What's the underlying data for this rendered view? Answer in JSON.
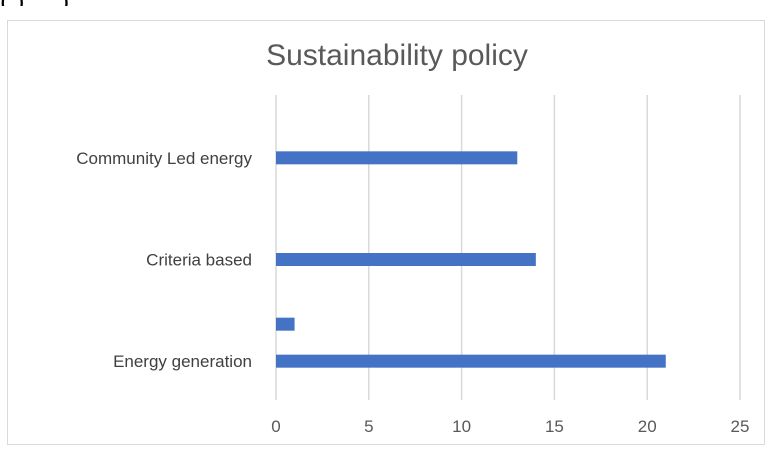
{
  "chart_data": {
    "type": "bar",
    "orientation": "horizontal",
    "title": "Sustainability policy",
    "top_fragment_text": "(                            ) ,    ,                              )",
    "categories": [
      "Community Led energy",
      "Criteria based",
      "Energy generation"
    ],
    "series": [
      {
        "values": [
          13,
          14,
          21
        ]
      },
      {
        "values": [
          null,
          null,
          1
        ]
      }
    ],
    "xlim": [
      0,
      25
    ],
    "xticks": [
      "0",
      "5",
      "10",
      "15",
      "20",
      "25"
    ],
    "xlabel": "",
    "ylabel": "",
    "grid": true,
    "legend": "none",
    "bar_color": "#4472c4"
  }
}
